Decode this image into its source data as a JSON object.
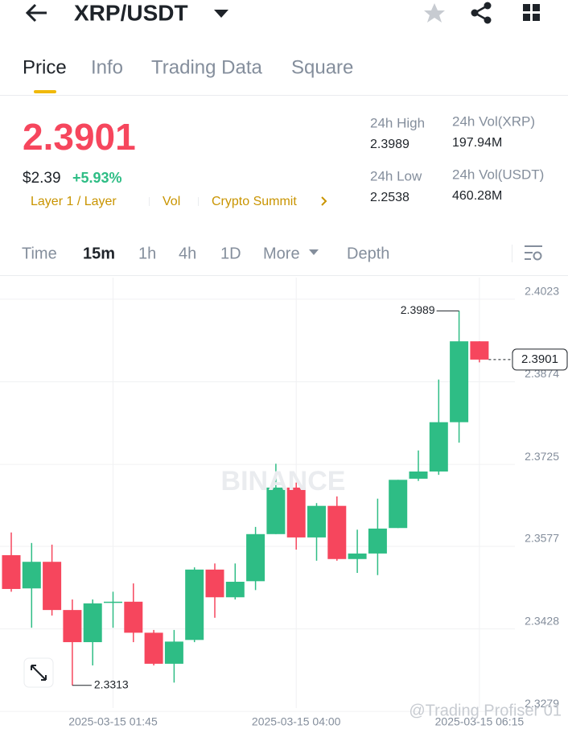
{
  "header": {
    "pair": "XRP/USDT"
  },
  "tabs": [
    "Price",
    "Info",
    "Trading Data",
    "Square"
  ],
  "price": {
    "last": "2.3901",
    "usd": "$2.39",
    "change": "+5.93%"
  },
  "tags": [
    "Layer 1 / Layer",
    "Vol",
    "Crypto Summit"
  ],
  "stats": [
    {
      "label": "24h High",
      "value": "2.3989"
    },
    {
      "label": "24h Vol(XRP)",
      "value": "197.94M"
    },
    {
      "label": "24h Low",
      "value": "2.2538"
    },
    {
      "label": "24h Vol(USDT)",
      "value": "460.28M"
    }
  ],
  "intervals": [
    "Time",
    "15m",
    "1h",
    "4h",
    "1D",
    "More",
    "Depth"
  ],
  "watermark": "BINANCE",
  "credit": "@Trading Profiser 01",
  "chart_data": {
    "type": "candlestick",
    "categories": [
      null,
      null,
      null,
      null,
      null,
      "2025-03-15 01:45",
      null,
      null,
      null,
      null,
      null,
      null,
      null,
      null,
      "2025-03-15 04:00",
      null,
      null,
      null,
      null,
      null,
      null,
      null,
      null,
      "2025-03-15 06:15"
    ],
    "open": [
      2.3548,
      2.3488,
      2.3536,
      2.3449,
      2.3391,
      2.3464,
      2.3464,
      2.3408,
      2.3352,
      2.3395,
      2.3522,
      2.3472,
      2.3501,
      2.3586,
      2.367,
      2.358,
      2.3637,
      2.3541,
      2.3551,
      2.3597,
      2.3686,
      2.3699,
      2.3788,
      2.3934
    ],
    "high": [
      2.3589,
      2.357,
      2.3567,
      2.3468,
      2.3468,
      2.3482,
      2.3497,
      2.3413,
      2.3413,
      2.3526,
      2.3533,
      2.3533,
      2.3599,
      2.3713,
      2.3679,
      2.3642,
      2.3654,
      2.3594,
      2.365,
      2.3684,
      2.3737,
      2.3865,
      2.3989,
      2.3934
    ],
    "low": [
      2.3482,
      2.3417,
      2.3439,
      2.3313,
      2.3349,
      2.3417,
      2.3391,
      2.3349,
      2.3318,
      2.3391,
      2.3435,
      2.3468,
      2.3485,
      2.3586,
      2.3558,
      2.3538,
      2.3538,
      2.3516,
      2.3512,
      2.3597,
      2.3682,
      2.3693,
      2.3751,
      2.3896
    ],
    "close": [
      2.3487,
      2.3536,
      2.3449,
      2.3391,
      2.3461,
      2.3464,
      2.3408,
      2.3352,
      2.3392,
      2.3522,
      2.3472,
      2.35,
      2.3586,
      2.367,
      2.358,
      2.3637,
      2.3541,
      2.3551,
      2.3596,
      2.3684,
      2.3699,
      2.3788,
      2.3934,
      2.3901
    ],
    "up_color": "#2ebd85",
    "down_color": "#f6465d",
    "ylim": [
      2.3272,
      2.4049
    ],
    "yticks": [
      2.4023,
      2.3874,
      2.3725,
      2.3577,
      2.3428,
      2.3279
    ],
    "grid": true
  }
}
